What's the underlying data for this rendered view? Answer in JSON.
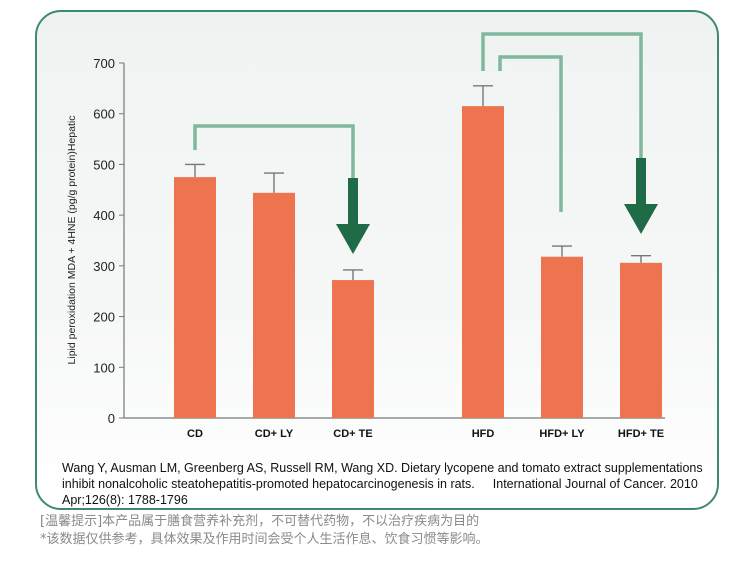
{
  "chart_data": {
    "type": "bar",
    "categories": [
      "CD",
      "CD+ LY",
      "CD+ TE",
      "HFD",
      "HFD+ LY",
      "HFD+ TE"
    ],
    "values": [
      475,
      444,
      272,
      615,
      318,
      306
    ],
    "error_upper": [
      500,
      483,
      292,
      655,
      339,
      320
    ],
    "ylabel": "Lipid peroxidation MDA + 4HNE (pg/g protein)Hepatic",
    "xlabel": "",
    "ylim": [
      0,
      700
    ],
    "yticks": [
      0,
      100,
      200,
      300,
      400,
      500,
      600,
      700
    ],
    "grid": false,
    "bar_color": "#ee7450",
    "annotations": [
      {
        "from": "CD",
        "to": "CD+ TE",
        "type": "bracket-arrow"
      },
      {
        "from": "HFD",
        "to": "HFD+ LY",
        "type": "bracket"
      },
      {
        "from": "HFD",
        "to": "HFD+ TE",
        "type": "bracket-arrow"
      }
    ]
  },
  "colors": {
    "bracket": "#7fb89c",
    "arrow": "#1f6b48",
    "border": "#3f8a68"
  },
  "reference": {
    "main": "Wang Y, Ausman LM, Greenberg AS, Russell RM, Wang XD. Dietary lycopene and tomato extract supplementations inhibit nonalcoholic steatohepatitis-promoted hepatocarcinogenesis in rats.",
    "journal": "International Journal of Cancer. 2010 Apr;126(8): 1788-1796"
  },
  "notes": [
    "[温馨提示]本产品属于膳食营养补充剂，不可替代药物，不以治疗疾病为目的",
    "*该数据仅供参考，具体效果及作用时间会受个人生活作息、饮食习惯等影响。"
  ]
}
